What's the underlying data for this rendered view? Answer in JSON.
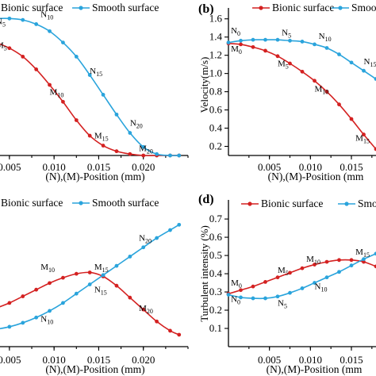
{
  "figure": {
    "colors": {
      "bionic": "#d42121",
      "smooth": "#2aa4dc"
    }
  },
  "chart_data": [
    {
      "id": "a",
      "panel_label": "",
      "type": "line",
      "xlabel": "(N),(M)-Position (mm)",
      "ylabel": "",
      "xlim": [
        0.0035,
        0.025
      ],
      "ylim": [
        0.0,
        1.0
      ],
      "x_ticks": [
        "0.005",
        "0.010",
        "0.015",
        "0.020"
      ],
      "y_ticks": [],
      "legend": {
        "placement": "top",
        "entries": [
          "Bionic surface",
          "Smooth surface"
        ]
      },
      "series": [
        {
          "name": "Bionic surface",
          "color": "#d42121",
          "x": [
            0.0035,
            0.005,
            0.0065,
            0.008,
            0.0095,
            0.011,
            0.0125,
            0.014,
            0.0155,
            0.017,
            0.0185,
            0.02,
            0.0215,
            0.023,
            0.024
          ],
          "y": [
            0.8,
            0.76,
            0.7,
            0.61,
            0.5,
            0.38,
            0.25,
            0.14,
            0.07,
            0.03,
            0.01,
            0.0,
            0.0,
            0.0,
            0.0
          ],
          "labels": [
            {
              "text": "M5",
              "x": 0.0035,
              "y": 0.76
            },
            {
              "text": "M10",
              "x": 0.0095,
              "y": 0.43
            },
            {
              "text": "M15",
              "x": 0.0145,
              "y": 0.12
            },
            {
              "text": "M20",
              "x": 0.0195,
              "y": 0.03
            }
          ]
        },
        {
          "name": "Smooth surface",
          "color": "#2aa4dc",
          "x": [
            0.0035,
            0.005,
            0.0065,
            0.008,
            0.0095,
            0.011,
            0.0125,
            0.014,
            0.0155,
            0.017,
            0.0185,
            0.02,
            0.0215,
            0.023,
            0.024
          ],
          "y": [
            0.97,
            0.97,
            0.96,
            0.93,
            0.88,
            0.8,
            0.7,
            0.57,
            0.43,
            0.29,
            0.16,
            0.06,
            0.01,
            0.0,
            0.0
          ],
          "labels": [
            {
              "text": "N5",
              "x": 0.0035,
              "y": 0.93
            },
            {
              "text": "N10",
              "x": 0.0085,
              "y": 0.98
            },
            {
              "text": "N15",
              "x": 0.014,
              "y": 0.58
            },
            {
              "text": "N20",
              "x": 0.0185,
              "y": 0.21
            }
          ]
        }
      ]
    },
    {
      "id": "b",
      "panel_label": "(b)",
      "type": "line",
      "xlabel": "(N),(M)-Position (mm",
      "ylabel": "Velocity(m/s)",
      "xlim": [
        0.0,
        0.018
      ],
      "ylim": [
        0.1,
        1.65
      ],
      "x_ticks": [
        "0.005",
        "0.010",
        "0.015"
      ],
      "y_ticks": [
        "0.2",
        "0.4",
        "0.6",
        "0.8",
        "1.0",
        "1.2",
        "1.4",
        "1.6"
      ],
      "legend": {
        "placement": "top",
        "entries": [
          "Bionic surface",
          "Smooth surface"
        ]
      },
      "series": [
        {
          "name": "Bionic surface",
          "color": "#d42121",
          "x": [
            0.0,
            0.0015,
            0.003,
            0.0045,
            0.006,
            0.0075,
            0.009,
            0.0105,
            0.012,
            0.0135,
            0.015,
            0.0165,
            0.018
          ],
          "y": [
            1.33,
            1.32,
            1.29,
            1.25,
            1.19,
            1.11,
            1.02,
            0.92,
            0.8,
            0.66,
            0.5,
            0.33,
            0.17
          ],
          "labels": [
            {
              "text": "M0",
              "x": 0.0003,
              "y": 1.24
            },
            {
              "text": "M5",
              "x": 0.006,
              "y": 1.08
            },
            {
              "text": "M10",
              "x": 0.0105,
              "y": 0.8
            },
            {
              "text": "M15",
              "x": 0.0155,
              "y": 0.26
            }
          ]
        },
        {
          "name": "Smooth surface",
          "color": "#2aa4dc",
          "x": [
            0.0,
            0.0015,
            0.003,
            0.0045,
            0.006,
            0.0075,
            0.009,
            0.0105,
            0.012,
            0.0135,
            0.015,
            0.0165,
            0.018
          ],
          "y": [
            1.34,
            1.36,
            1.37,
            1.37,
            1.37,
            1.36,
            1.35,
            1.32,
            1.28,
            1.21,
            1.12,
            1.03,
            0.94
          ],
          "labels": [
            {
              "text": "N0",
              "x": 0.0003,
              "y": 1.44
            },
            {
              "text": "N5",
              "x": 0.0065,
              "y": 1.42
            },
            {
              "text": "N10",
              "x": 0.011,
              "y": 1.38
            },
            {
              "text": "N15",
              "x": 0.0165,
              "y": 1.1
            }
          ]
        }
      ]
    },
    {
      "id": "c",
      "panel_label": "",
      "type": "line",
      "xlabel": "(N),(M)-Position (mm)",
      "ylabel": "",
      "xlim": [
        0.0035,
        0.025
      ],
      "ylim": [
        0.0,
        1.0
      ],
      "x_ticks": [
        "0.005",
        "0.010",
        "0.015",
        "0.020"
      ],
      "y_ticks": [],
      "legend": {
        "placement": "top",
        "entries": [
          "Bionic surface",
          "Smooth surface"
        ]
      },
      "series": [
        {
          "name": "Bionic surface",
          "color": "#d42121",
          "x": [
            0.0035,
            0.005,
            0.0065,
            0.008,
            0.0095,
            0.011,
            0.0125,
            0.014,
            0.0155,
            0.017,
            0.0185,
            0.02,
            0.0215,
            0.023,
            0.024
          ],
          "y": [
            0.29,
            0.33,
            0.38,
            0.43,
            0.48,
            0.52,
            0.55,
            0.56,
            0.53,
            0.46,
            0.37,
            0.28,
            0.19,
            0.12,
            0.09
          ],
          "labels": [
            {
              "text": "M10",
              "x": 0.0085,
              "y": 0.58
            },
            {
              "text": "M15",
              "x": 0.0145,
              "y": 0.58
            },
            {
              "text": "M20",
              "x": 0.0195,
              "y": 0.27
            }
          ]
        },
        {
          "name": "Smooth surface",
          "color": "#2aa4dc",
          "x": [
            0.0035,
            0.005,
            0.0065,
            0.008,
            0.0095,
            0.011,
            0.0125,
            0.014,
            0.0155,
            0.017,
            0.0185,
            0.02,
            0.0215,
            0.023,
            0.024
          ],
          "y": [
            0.13,
            0.15,
            0.18,
            0.22,
            0.27,
            0.33,
            0.4,
            0.47,
            0.54,
            0.61,
            0.68,
            0.75,
            0.82,
            0.88,
            0.92
          ],
          "labels": [
            {
              "text": "N10",
              "x": 0.0085,
              "y": 0.19
            },
            {
              "text": "N15",
              "x": 0.0145,
              "y": 0.41
            },
            {
              "text": "N20",
              "x": 0.0195,
              "y": 0.8
            }
          ]
        }
      ]
    },
    {
      "id": "d",
      "panel_label": "(d)",
      "type": "line",
      "xlabel": "(N),(M)-Position (mm",
      "ylabel": "Turbulent intensity  (%)",
      "xlim": [
        0.0,
        0.018
      ],
      "ylim": [
        0.0,
        0.77
      ],
      "x_ticks": [
        "0.005",
        "0.010",
        "0.015"
      ],
      "y_ticks": [
        "0.1",
        "0.2",
        "0.3",
        "0.4",
        "0.5",
        "0.6",
        "0.7"
      ],
      "legend": {
        "placement": "top",
        "entries": [
          "Bionic surface",
          "Smooth surface"
        ]
      },
      "series": [
        {
          "name": "Bionic surface",
          "color": "#d42121",
          "x": [
            0.0,
            0.0015,
            0.003,
            0.0045,
            0.006,
            0.0075,
            0.009,
            0.0105,
            0.012,
            0.0135,
            0.015,
            0.0165,
            0.018
          ],
          "y": [
            0.29,
            0.31,
            0.33,
            0.355,
            0.38,
            0.405,
            0.43,
            0.45,
            0.465,
            0.475,
            0.475,
            0.465,
            0.44
          ],
          "labels": [
            {
              "text": "M0",
              "x": 0.0003,
              "y": 0.335
            },
            {
              "text": "M5",
              "x": 0.006,
              "y": 0.405
            },
            {
              "text": "M10",
              "x": 0.0095,
              "y": 0.465
            },
            {
              "text": "M15",
              "x": 0.0155,
              "y": 0.505
            }
          ]
        },
        {
          "name": "Smooth surface",
          "color": "#2aa4dc",
          "x": [
            0.0,
            0.0015,
            0.003,
            0.0045,
            0.006,
            0.0075,
            0.009,
            0.0105,
            0.012,
            0.0135,
            0.015,
            0.0165,
            0.018
          ],
          "y": [
            0.285,
            0.27,
            0.265,
            0.265,
            0.275,
            0.295,
            0.32,
            0.35,
            0.38,
            0.41,
            0.445,
            0.48,
            0.51
          ],
          "labels": [
            {
              "text": "N0",
              "x": 0.0003,
              "y": 0.245
            },
            {
              "text": "N5",
              "x": 0.006,
              "y": 0.225
            },
            {
              "text": "N10",
              "x": 0.0105,
              "y": 0.315
            }
          ]
        }
      ]
    }
  ]
}
